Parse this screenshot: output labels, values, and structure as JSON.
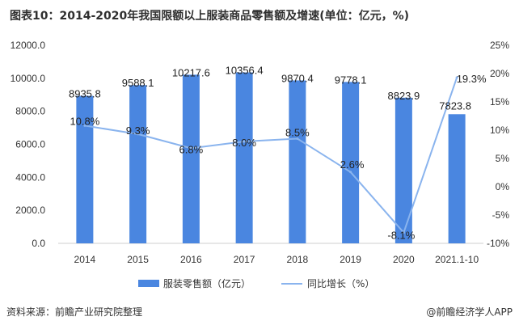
{
  "title": "图表10：2014-2020年我国限额以上服装商品零售额及增速(单位：亿元，%)",
  "source": "资料来源：前瞻产业研究院整理",
  "brand": "@前瞻经济学人APP",
  "colors": {
    "bar": "#4a86e0",
    "line": "#8ab4ee"
  },
  "chart_data": {
    "type": "bar",
    "categories": [
      "2014",
      "2015",
      "2016",
      "2017",
      "2018",
      "2019",
      "2020",
      "2021.1-10"
    ],
    "series": [
      {
        "name": "服装零售额（亿元）",
        "type": "bar",
        "axis": "left",
        "values": [
          8935.8,
          9588.1,
          10217.6,
          10356.4,
          9870.4,
          9778.1,
          8823.9,
          7823.8
        ],
        "labels": [
          "8935.8",
          "9588.1",
          "10217.6",
          "10356.4",
          "9870.4",
          "9778.1",
          "8823.9",
          "7823.8"
        ]
      },
      {
        "name": "同比增长（%）",
        "type": "line",
        "axis": "right",
        "values": [
          10.8,
          9.3,
          6.8,
          8.0,
          8.5,
          2.6,
          -8.1,
          19.3
        ],
        "labels": [
          "10.8%",
          "9.3%",
          "6.8%",
          "8.0%",
          "8.5%",
          "2.6%",
          "-8.1%",
          "19.3%"
        ]
      }
    ],
    "y_left": {
      "min": 0,
      "max": 12000,
      "step": 2000,
      "ticks": [
        "0.0",
        "2000.0",
        "4000.0",
        "6000.0",
        "8000.0",
        "10000.0",
        "12000.0"
      ]
    },
    "y_right": {
      "min": -10,
      "max": 25,
      "step": 5,
      "ticks": [
        "-10%",
        "-5%",
        "0%",
        "5%",
        "10%",
        "15%",
        "20%",
        "25%"
      ]
    },
    "legend": [
      "服装零售额（亿元）",
      "同比增长（%）"
    ],
    "legend_position": "bottom",
    "grid": false
  }
}
